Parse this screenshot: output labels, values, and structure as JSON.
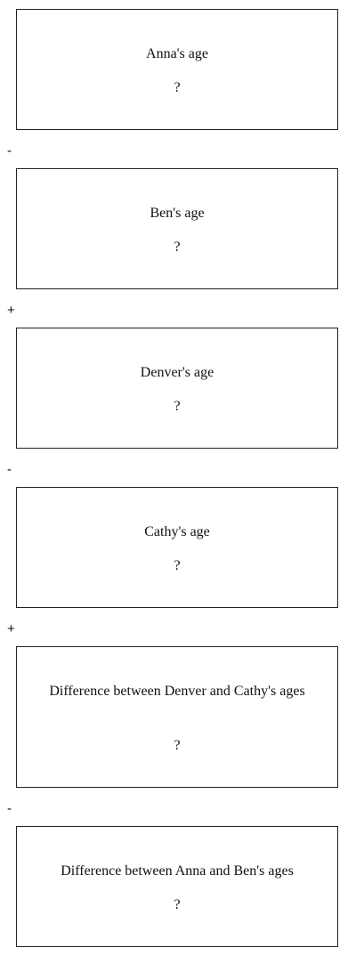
{
  "boxes": [
    {
      "label": "Anna's age",
      "value": "?"
    },
    {
      "label": "Ben's age",
      "value": "?"
    },
    {
      "label": "Denver's age",
      "value": "?"
    },
    {
      "label": "Cathy's age",
      "value": "?"
    },
    {
      "label": "Difference between Denver and Cathy's ages",
      "value": "?"
    },
    {
      "label": "Difference between Anna and Ben's ages",
      "value": "?"
    }
  ],
  "operators": [
    "-",
    "+",
    "-",
    "+",
    "-"
  ]
}
